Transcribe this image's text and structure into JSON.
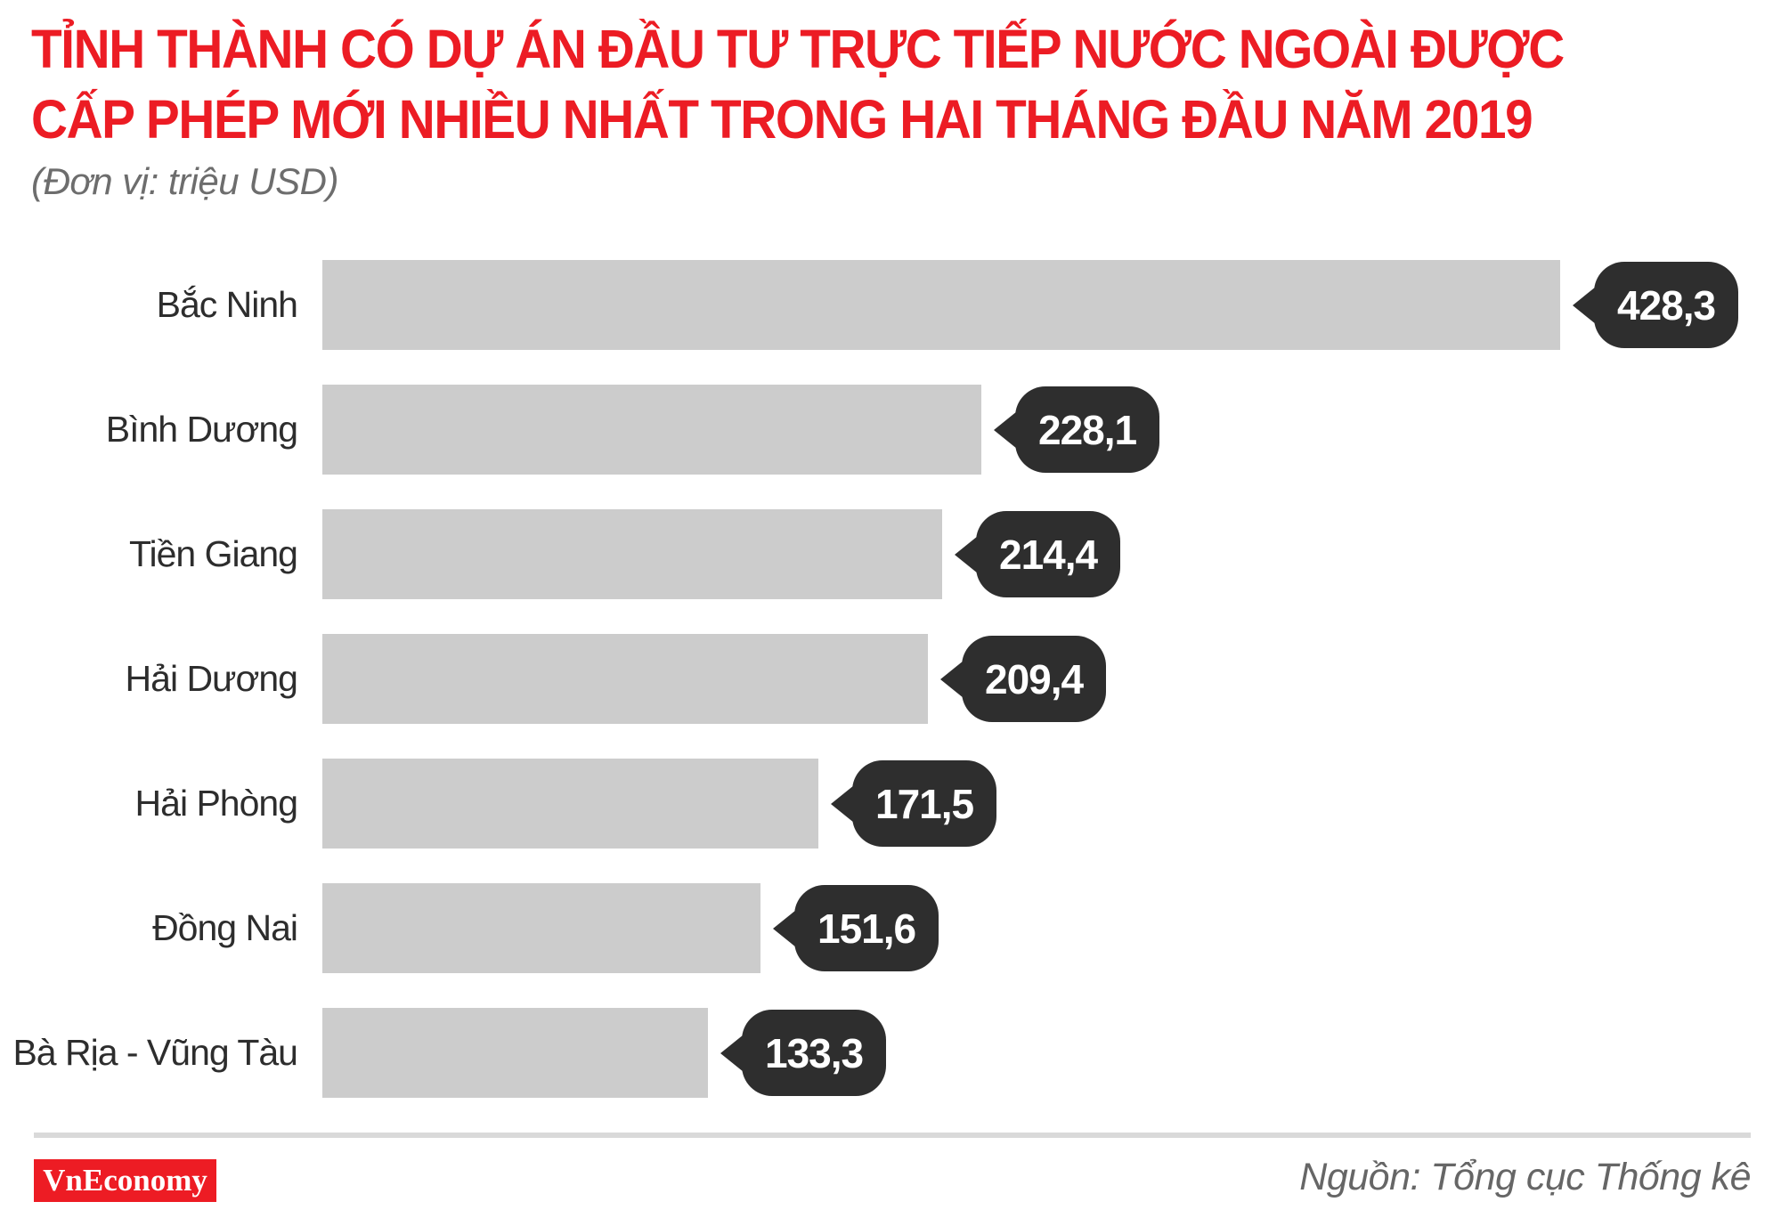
{
  "title": {
    "line1": "TỈNH THÀNH CÓ DỰ ÁN ĐẦU TƯ TRỰC TIẾP NƯỚC NGOÀI ĐƯỢC",
    "line2": "CẤP PHÉP MỚI NHIỀU NHẤT TRONG HAI THÁNG ĐẦU NĂM 2019"
  },
  "subtitle": "(Đơn vị: triệu USD)",
  "chart_data": {
    "type": "bar",
    "orientation": "horizontal",
    "title": "Tỉnh thành có dự án đầu tư trực tiếp nước ngoài được cấp phép mới nhiều nhất trong hai tháng đầu năm 2019",
    "unit": "triệu USD",
    "categories": [
      "Bắc Ninh",
      "Bình Dương",
      "Tiền Giang",
      "Hải Dương",
      "Hải Phòng",
      "Đồng Nai",
      "Bà Rịa - Vũng Tàu"
    ],
    "values": [
      428.3,
      228.1,
      214.4,
      209.4,
      171.5,
      151.6,
      133.3
    ],
    "value_labels": [
      "428,3",
      "228,1",
      "214,4",
      "209,4",
      "171,5",
      "151,6",
      "133,3"
    ],
    "xlim": [
      0,
      440
    ],
    "grid": false,
    "legend": false,
    "bar_color": "#cccccc",
    "bubble_color": "#2e2e2e",
    "bubble_text_color": "#ffffff",
    "label_color": "#2d2d2d"
  },
  "footer": {
    "logo_text": "VnEconomy",
    "logo_bg": "#ed1c24",
    "source": "Nguồn: Tổng cục Thống kê"
  },
  "colors": {
    "title_red": "#ec1c24",
    "subtitle_gray": "#6d6d6d",
    "divider_gray": "#d9d9d9",
    "source_gray": "#666666"
  }
}
